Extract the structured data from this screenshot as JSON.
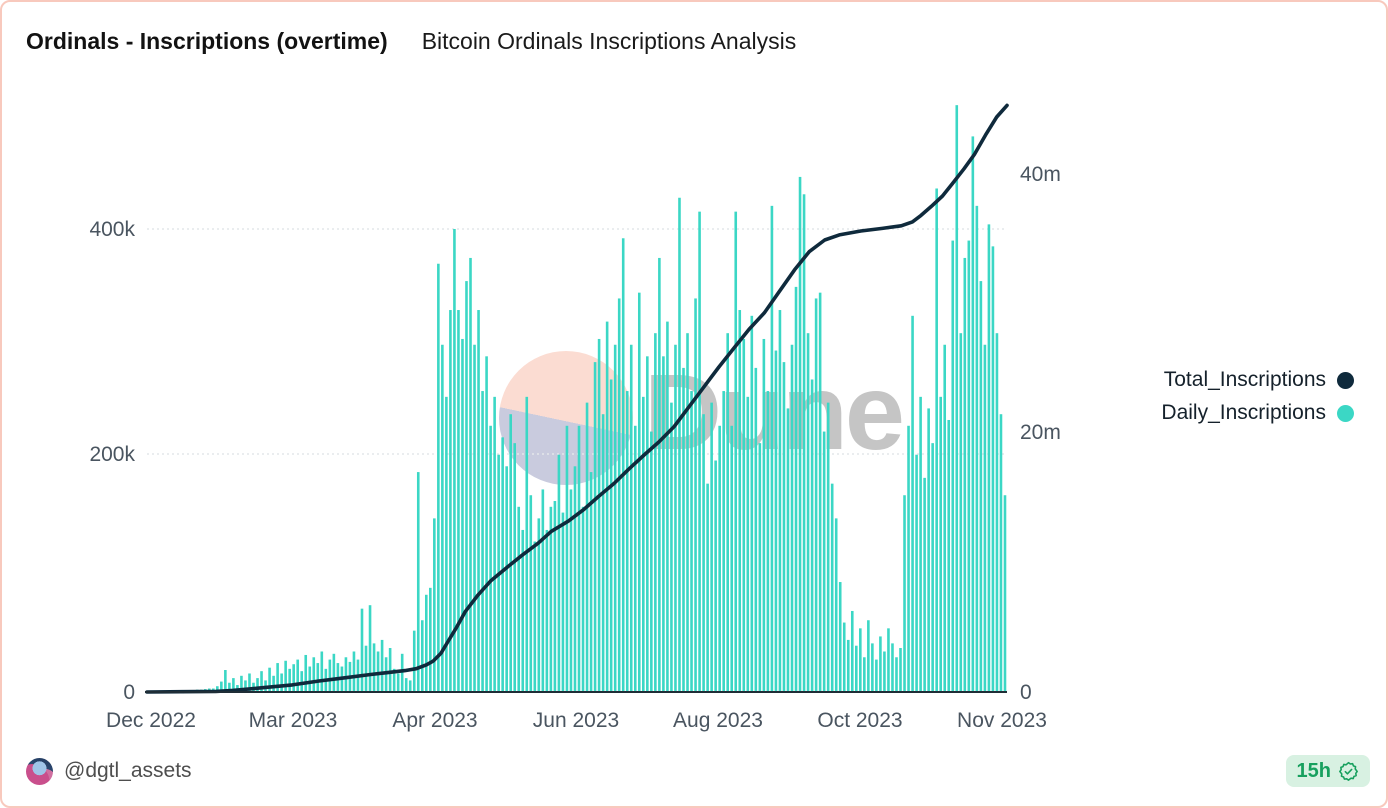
{
  "header": {
    "title": "Ordinals - Inscriptions (overtime)",
    "subtitle": "Bitcoin Ordinals Inscriptions Analysis"
  },
  "watermark": {
    "brand": "Dune"
  },
  "legend": [
    {
      "label": "Total_Inscriptions",
      "color": "#0f2a3c"
    },
    {
      "label": "Daily_Inscriptions",
      "color": "#3bd7c5"
    }
  ],
  "footer": {
    "handle": "@dgtl_assets",
    "age_badge": {
      "label": "15h",
      "icon": "verified-seal-check-icon"
    }
  },
  "chart_data": {
    "type": "bar",
    "subtype": "combo bar + cumulative line, dual y-axis",
    "title": "Ordinals - Inscriptions (overtime)",
    "subtitle": "Bitcoin Ordinals Inscriptions Analysis",
    "grid": "horizontal gridlines at left-axis 200k and 400k",
    "legend_position": "right",
    "x_axis": {
      "tick_labels": [
        "Dec 2022",
        "Mar 2023",
        "Apr 2023",
        "Jun 2023",
        "Aug 2023",
        "Oct 2023",
        "Nov 2023"
      ],
      "note": "category axis, labels evenly spaced"
    },
    "left_y_axis": {
      "series": "Daily_Inscriptions",
      "tick_labels": [
        "0",
        "200k",
        "400k"
      ],
      "range_thousands": [
        0,
        520
      ]
    },
    "right_y_axis": {
      "series": "Total_Inscriptions",
      "tick_labels": [
        "0",
        "20m",
        "40m"
      ],
      "range_millions": [
        0,
        46
      ]
    },
    "series": [
      {
        "name": "Daily_Inscriptions",
        "type": "bar",
        "axis": "left",
        "color": "#3bd7c5",
        "unit": "thousands of inscriptions per day (estimated from pixels)",
        "values": [
          0,
          0,
          0,
          0,
          0,
          0.5,
          0.5,
          1,
          1,
          1,
          1.5,
          1.5,
          2,
          2,
          2.5,
          3,
          3,
          5,
          9,
          19,
          8,
          12,
          6,
          14,
          10,
          16,
          8,
          12,
          18,
          10,
          21,
          14,
          25,
          16,
          27,
          20,
          24,
          28,
          18,
          32,
          22,
          30,
          25,
          35,
          20,
          28,
          33,
          25,
          22,
          30,
          26,
          35,
          28,
          72,
          40,
          75,
          42,
          35,
          45,
          30,
          38,
          20,
          16,
          33,
          12,
          10,
          53,
          190,
          62,
          84,
          90,
          150,
          370,
          300,
          255,
          330,
          400,
          330,
          305,
          355,
          375,
          300,
          330,
          260,
          290,
          230,
          255,
          205,
          220,
          195,
          240,
          215,
          160,
          140,
          255,
          170,
          130,
          150,
          175,
          140,
          160,
          165,
          205,
          155,
          230,
          175,
          195,
          230,
          160,
          250,
          190,
          285,
          305,
          240,
          320,
          270,
          300,
          340,
          392,
          260,
          300,
          230,
          345,
          255,
          290,
          225,
          310,
          375,
          290,
          320,
          250,
          300,
          427,
          280,
          310,
          260,
          340,
          415,
          240,
          180,
          250,
          200,
          230,
          260,
          310,
          230,
          415,
          330,
          305,
          255,
          325,
          280,
          215,
          305,
          260,
          420,
          295,
          330,
          285,
          245,
          300,
          350,
          445,
          430,
          310,
          270,
          340,
          345,
          225,
          250,
          180,
          150,
          95,
          60,
          45,
          70,
          40,
          55,
          30,
          62,
          42,
          28,
          48,
          35,
          55,
          42,
          30,
          38,
          170,
          230,
          325,
          205,
          255,
          185,
          245,
          215,
          435,
          255,
          300,
          235,
          390,
          507,
          310,
          375,
          390,
          480,
          420,
          355,
          300,
          404,
          385,
          310,
          240,
          170
        ]
      },
      {
        "name": "Total_Inscriptions",
        "type": "line",
        "axis": "right",
        "color": "#0f2a3c",
        "unit": "millions of cumulative inscriptions (estimated from pixels)",
        "points": [
          [
            0,
            0
          ],
          [
            0.04,
            0.02
          ],
          [
            0.08,
            0.05
          ],
          [
            0.1,
            0.12
          ],
          [
            0.13,
            0.3
          ],
          [
            0.169,
            0.55
          ],
          [
            0.2,
            0.85
          ],
          [
            0.23,
            1.1
          ],
          [
            0.26,
            1.35
          ],
          [
            0.28,
            1.5
          ],
          [
            0.3,
            1.65
          ],
          [
            0.313,
            1.8
          ],
          [
            0.325,
            2.1
          ],
          [
            0.333,
            2.4
          ],
          [
            0.342,
            3.0
          ],
          [
            0.35,
            3.9
          ],
          [
            0.36,
            5.0
          ],
          [
            0.37,
            6.2
          ],
          [
            0.385,
            7.5
          ],
          [
            0.4,
            8.6
          ],
          [
            0.42,
            9.7
          ],
          [
            0.437,
            10.6
          ],
          [
            0.455,
            11.5
          ],
          [
            0.47,
            12.4
          ],
          [
            0.49,
            13.2
          ],
          [
            0.508,
            14.1
          ],
          [
            0.525,
            15.1
          ],
          [
            0.543,
            16.1
          ],
          [
            0.56,
            17.2
          ],
          [
            0.578,
            18.3
          ],
          [
            0.595,
            19.3
          ],
          [
            0.613,
            20.5
          ],
          [
            0.63,
            22.0
          ],
          [
            0.648,
            23.6
          ],
          [
            0.665,
            25.1
          ],
          [
            0.683,
            26.6
          ],
          [
            0.7,
            28.0
          ],
          [
            0.718,
            29.3
          ],
          [
            0.735,
            30.9
          ],
          [
            0.753,
            32.6
          ],
          [
            0.77,
            34.0
          ],
          [
            0.788,
            34.9
          ],
          [
            0.805,
            35.3
          ],
          [
            0.83,
            35.6
          ],
          [
            0.855,
            35.8
          ],
          [
            0.877,
            36.0
          ],
          [
            0.89,
            36.3
          ],
          [
            0.9,
            36.8
          ],
          [
            0.912,
            37.5
          ],
          [
            0.925,
            38.3
          ],
          [
            0.937,
            39.3
          ],
          [
            0.95,
            40.4
          ],
          [
            0.962,
            41.5
          ],
          [
            0.975,
            43.0
          ],
          [
            0.988,
            44.4
          ],
          [
            1.0,
            45.3
          ]
        ]
      }
    ]
  }
}
